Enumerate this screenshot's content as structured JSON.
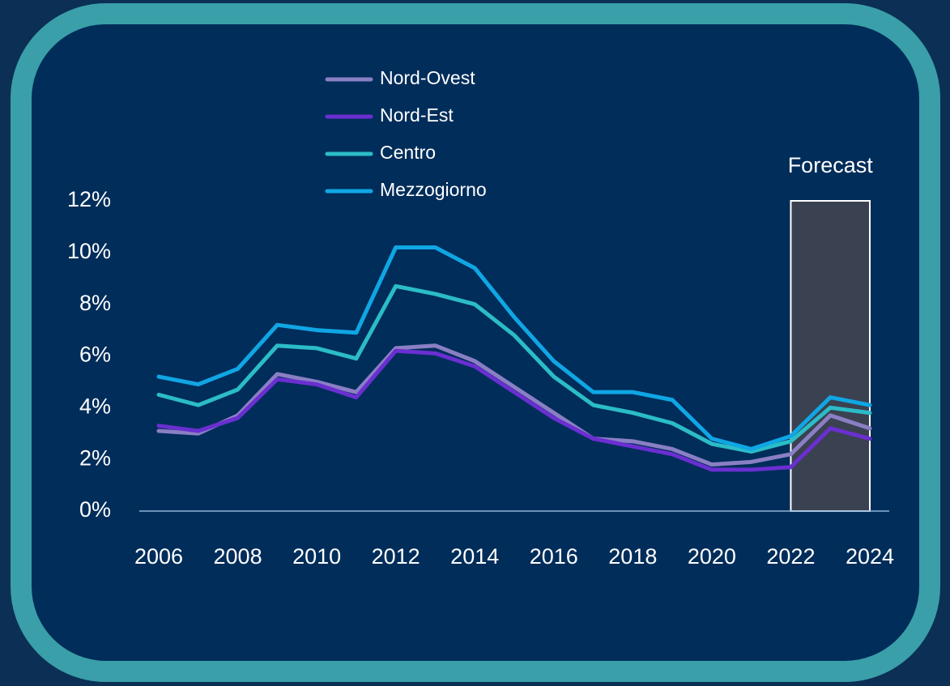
{
  "chart_data": {
    "type": "line",
    "x": [
      2006,
      2007,
      2008,
      2009,
      2010,
      2011,
      2012,
      2013,
      2014,
      2015,
      2016,
      2017,
      2018,
      2019,
      2020,
      2021,
      2022,
      2023,
      2024
    ],
    "series": [
      {
        "name": "Nord-Ovest",
        "color": "#8a7fc4",
        "values": [
          3.1,
          3.0,
          3.7,
          5.3,
          5.0,
          4.6,
          6.3,
          6.4,
          5.8,
          4.8,
          3.8,
          2.8,
          2.7,
          2.4,
          1.8,
          1.9,
          2.2,
          3.7,
          3.2
        ]
      },
      {
        "name": "Nord-Est",
        "color": "#6a2fd0",
        "values": [
          3.3,
          3.1,
          3.6,
          5.1,
          4.9,
          4.4,
          6.2,
          6.1,
          5.6,
          4.6,
          3.6,
          2.8,
          2.5,
          2.2,
          1.6,
          1.6,
          1.7,
          3.2,
          2.8
        ]
      },
      {
        "name": "Centro",
        "color": "#2bbcc8",
        "values": [
          4.5,
          4.1,
          4.7,
          6.4,
          6.3,
          5.9,
          8.7,
          8.4,
          8.0,
          6.8,
          5.2,
          4.1,
          3.8,
          3.4,
          2.6,
          2.3,
          2.7,
          4.0,
          3.8
        ]
      },
      {
        "name": "Mezzogiorno",
        "color": "#10a6e4",
        "values": [
          5.2,
          4.9,
          5.5,
          7.2,
          7.0,
          6.9,
          10.2,
          10.2,
          9.4,
          7.5,
          5.8,
          4.6,
          4.6,
          4.3,
          2.8,
          2.4,
          2.9,
          4.4,
          4.1
        ]
      }
    ],
    "xlim": [
      2006,
      2024
    ],
    "xticks": [
      2006,
      2008,
      2010,
      2012,
      2014,
      2016,
      2018,
      2020,
      2022,
      2024
    ],
    "ylim": [
      0,
      12
    ],
    "yticks": [
      {
        "value": 0,
        "label": "0%"
      },
      {
        "value": 2,
        "label": "2%"
      },
      {
        "value": 4,
        "label": "4%"
      },
      {
        "value": 6,
        "label": "6%"
      },
      {
        "value": 8,
        "label": "8%"
      },
      {
        "value": 10,
        "label": "10%"
      },
      {
        "value": 12,
        "label": "12%"
      }
    ],
    "forecast": {
      "label": "Forecast",
      "x": [
        2022,
        2024
      ]
    },
    "grid": false,
    "legend": "top"
  }
}
